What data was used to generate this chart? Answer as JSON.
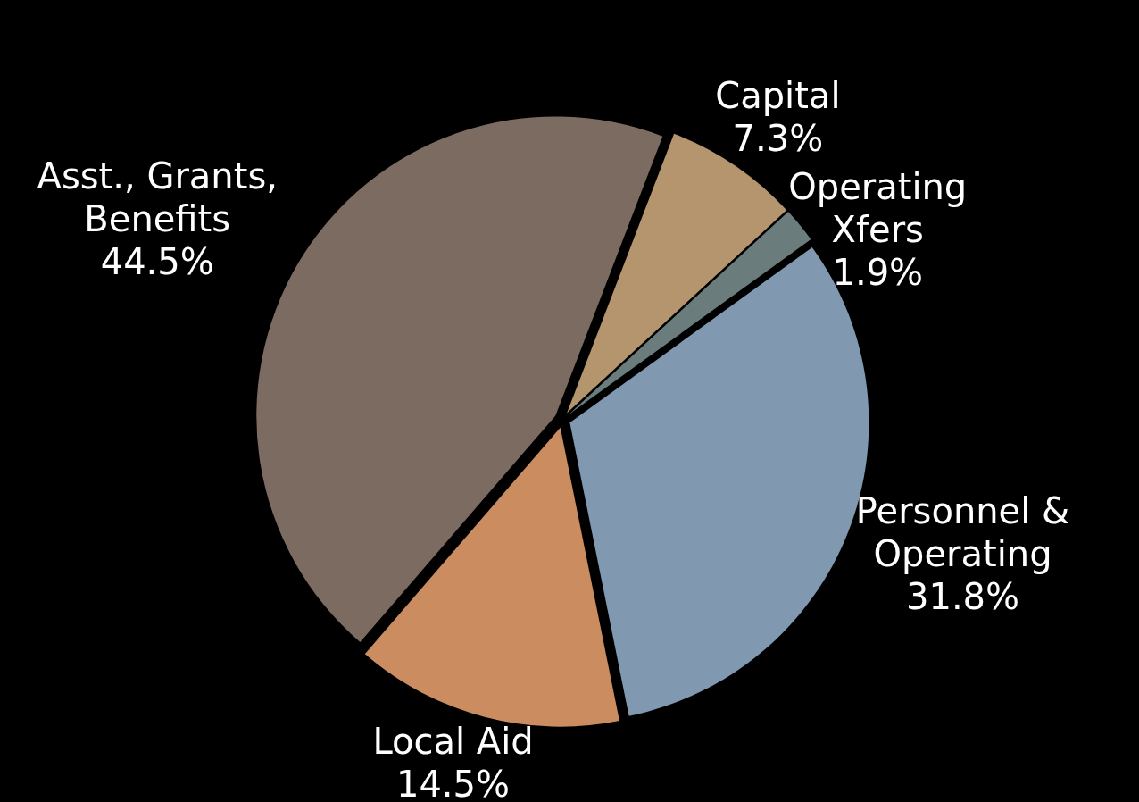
{
  "chart_data": {
    "type": "pie",
    "categories": [
      "Capital",
      "Operating Xfers",
      "Personnel & Operating",
      "Local Aid",
      "Asst., Grants, Benefits"
    ],
    "values": [
      7.3,
      1.9,
      31.8,
      14.5,
      44.5
    ],
    "value_labels": [
      "7.3%",
      "1.9%",
      "31.8%",
      "14.5%",
      "44.5%"
    ],
    "colors": [
      "#b5956e",
      "#6a7c7c",
      "#8099b0",
      "#cb8c60",
      "#7b6b60"
    ],
    "legend": false
  }
}
